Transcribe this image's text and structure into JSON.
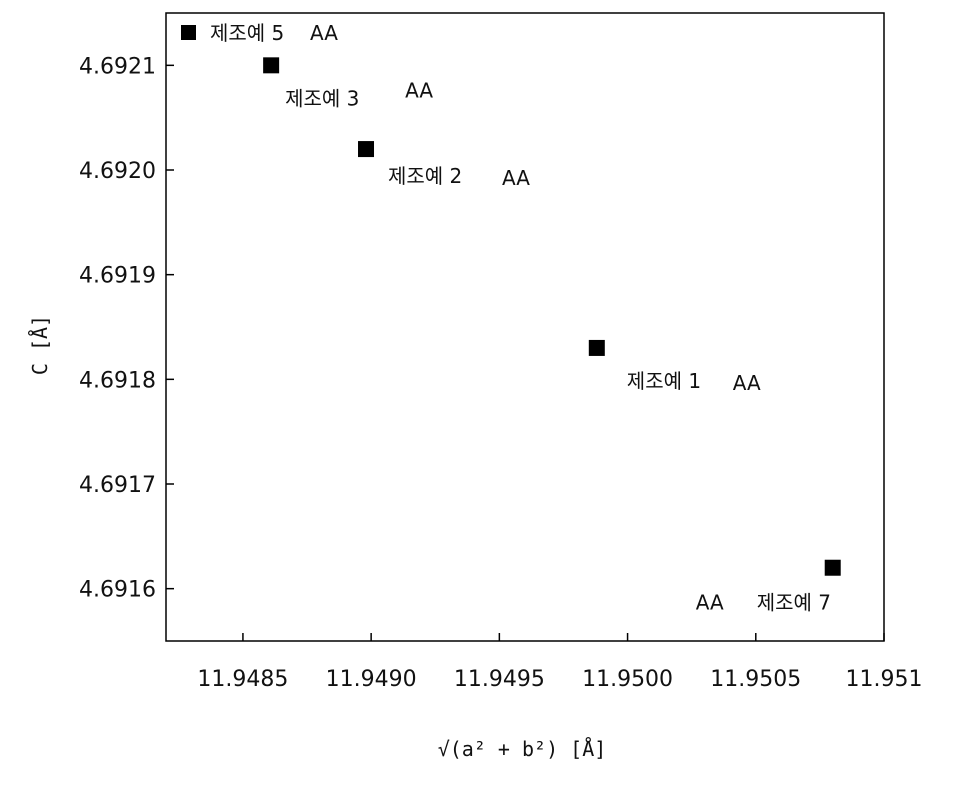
{
  "chart_data": {
    "type": "scatter",
    "xlabel": "√(a² + b²)  [Å]",
    "ylabel": "C [Å]",
    "xlim": [
      11.9482,
      11.951
    ],
    "ylim": [
      4.69155,
      4.69215
    ],
    "x_ticks": [
      "11.9485",
      "11.9490",
      "11.9495",
      "11.9500",
      "11.9505",
      "11.951"
    ],
    "x_tick_values": [
      11.9485,
      11.949,
      11.9495,
      11.95,
      11.9505,
      11.951
    ],
    "y_ticks": [
      "4.6921",
      "4.6920",
      "4.6919",
      "4.6918",
      "4.6917",
      "4.6916"
    ],
    "y_tick_values": [
      4.6921,
      4.692,
      4.6919,
      4.6918,
      4.6917,
      4.6916
    ],
    "grid": false,
    "marker": "square",
    "marker_color": "#000000",
    "points": [
      {
        "x": 11.94861,
        "y": 4.6921,
        "label": "제조예 3",
        "aa": "AA"
      },
      {
        "x": 11.94898,
        "y": 4.69202,
        "label": "제조예 2",
        "aa": "AA"
      },
      {
        "x": 11.94988,
        "y": 4.69183,
        "label": "제조예 1",
        "aa": "AA"
      },
      {
        "x": 11.9508,
        "y": 4.69162,
        "label": "제조예 7",
        "aa": "AA"
      }
    ],
    "legend": {
      "label": "제조예 5",
      "aa": "AA",
      "placement": "top-left"
    }
  }
}
